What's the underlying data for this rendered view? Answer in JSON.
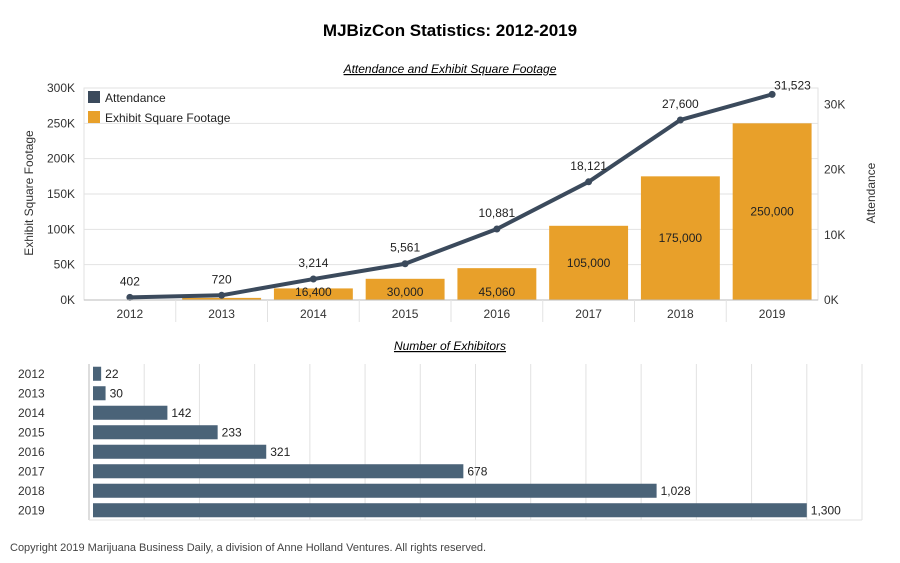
{
  "title": "MJBizCon Statistics: 2012-2019",
  "copyright": "Copyright 2019 Marijuana Business Daily, a division of Anne Holland Ventures. All rights reserved.",
  "colors": {
    "bar": "#E8A02A",
    "line": "#3B4A5C",
    "hbar": "#4A6378",
    "grid": "#E2E2E2",
    "axis": "#BBBBBB"
  },
  "chart_data": [
    {
      "type": "bar",
      "subtitle": "Attendance and Exhibit Square Footage",
      "categories": [
        "2012",
        "2013",
        "2014",
        "2015",
        "2016",
        "2017",
        "2018",
        "2019"
      ],
      "series": [
        {
          "name": "Exhibit Square Footage",
          "type": "bar",
          "axis": "left",
          "values": [
            0,
            3000,
            16400,
            30000,
            45060,
            105000,
            175000,
            250000
          ],
          "labels": [
            "",
            "",
            "16,400",
            "30,000",
            "45,060",
            "105,000",
            "175,000",
            "250,000"
          ]
        },
        {
          "name": "Attendance",
          "type": "line",
          "axis": "right",
          "values": [
            402,
            720,
            3214,
            5561,
            10881,
            18121,
            27600,
            31523
          ],
          "labels": [
            "402",
            "720",
            "3,214",
            "5,561",
            "10,881",
            "18,121",
            "27,600",
            "31,523"
          ]
        }
      ],
      "y_left": {
        "label": "Exhibit Square Footage",
        "ylim": [
          0,
          300000
        ],
        "ticks": [
          0,
          50000,
          100000,
          150000,
          200000,
          250000,
          300000
        ],
        "tick_labels": [
          "0K",
          "50K",
          "100K",
          "150K",
          "200K",
          "250K",
          "300K"
        ]
      },
      "y_right": {
        "label": "Attendance",
        "ylim": [
          0,
          32500
        ],
        "ticks": [
          0,
          10000,
          20000,
          30000
        ],
        "tick_labels": [
          "0K",
          "10K",
          "20K",
          "30K"
        ]
      },
      "legend": {
        "placement": "top-left",
        "entries": [
          "Attendance",
          "Exhibit Square Footage"
        ]
      },
      "grid": true
    },
    {
      "type": "bar",
      "orientation": "horizontal",
      "subtitle": "Number of Exhibitors",
      "categories": [
        "2012",
        "2013",
        "2014",
        "2015",
        "2016",
        "2017",
        "2018",
        "2019"
      ],
      "values": [
        22,
        30,
        142,
        233,
        321,
        678,
        1028,
        1300
      ],
      "labels": [
        "22",
        "30",
        "142",
        "233",
        "321",
        "678",
        "1,028",
        "1,300"
      ],
      "xlim": [
        0,
        1400
      ],
      "grid": true
    }
  ]
}
